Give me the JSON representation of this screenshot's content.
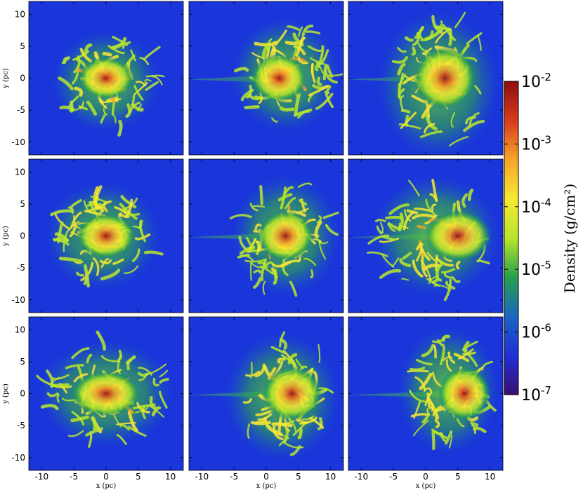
{
  "chart_data": {
    "type": "heatmap",
    "title": "",
    "layout": {
      "rows": 3,
      "cols": 3
    },
    "x_axis": {
      "label": "x (pc)",
      "range": [
        -12,
        12
      ],
      "ticks": [
        -10,
        -5,
        0,
        5,
        10
      ]
    },
    "y_axis": {
      "label": "y (pc)",
      "range": [
        -12,
        12
      ],
      "ticks": [
        -10,
        -5,
        0,
        5,
        10
      ]
    },
    "colorbar": {
      "label": "Density (g/cm²)",
      "scale": "log",
      "range": [
        1e-07,
        0.01
      ],
      "ticks": [
        "10-7",
        "10-6",
        "10-5",
        "10-4",
        "10-3",
        "10-2"
      ],
      "colormap": [
        "#3b0f70",
        "#1f2fd8",
        "#1a66c0",
        "#27a04a",
        "#b8e62b",
        "#f8e832",
        "#f5a52a",
        "#d93a1d",
        "#8c0e0e"
      ]
    },
    "background_color": "#1a35d9",
    "panels": [
      {
        "row": 0,
        "col": 0,
        "center": [
          0,
          0
        ],
        "extent_x": [
          -8,
          8
        ],
        "extent_y": [
          -8,
          7
        ],
        "peak": "3e-3"
      },
      {
        "row": 0,
        "col": 1,
        "center": [
          2,
          0
        ],
        "extent_x": [
          -5,
          11
        ],
        "extent_y": [
          -8,
          9
        ],
        "peak": "6e-3"
      },
      {
        "row": 0,
        "col": 2,
        "center": [
          3,
          0
        ],
        "extent_x": [
          -7,
          11
        ],
        "extent_y": [
          -12,
          10
        ],
        "peak": "1e-2"
      },
      {
        "row": 1,
        "col": 0,
        "center": [
          0,
          0
        ],
        "extent_x": [
          -9,
          8
        ],
        "extent_y": [
          -8,
          8
        ],
        "peak": "2e-3"
      },
      {
        "row": 1,
        "col": 1,
        "center": [
          3,
          0
        ],
        "extent_x": [
          -5,
          11
        ],
        "extent_y": [
          -9,
          9
        ],
        "peak": "5e-3"
      },
      {
        "row": 1,
        "col": 2,
        "center": [
          5,
          0
        ],
        "extent_x": [
          -8,
          11
        ],
        "extent_y": [
          -9,
          9
        ],
        "peak": "1e-2"
      },
      {
        "row": 2,
        "col": 0,
        "center": [
          0,
          0
        ],
        "extent_x": [
          -10,
          10
        ],
        "extent_y": [
          -8,
          8
        ],
        "peak": "2e-3"
      },
      {
        "row": 2,
        "col": 1,
        "center": [
          4,
          0
        ],
        "extent_x": [
          -6,
          11
        ],
        "extent_y": [
          -10,
          9
        ],
        "peak": "4e-3"
      },
      {
        "row": 2,
        "col": 2,
        "center": [
          6,
          0
        ],
        "extent_x": [
          -4,
          11
        ],
        "extent_y": [
          -9,
          10
        ],
        "peak": "6e-3"
      }
    ]
  }
}
